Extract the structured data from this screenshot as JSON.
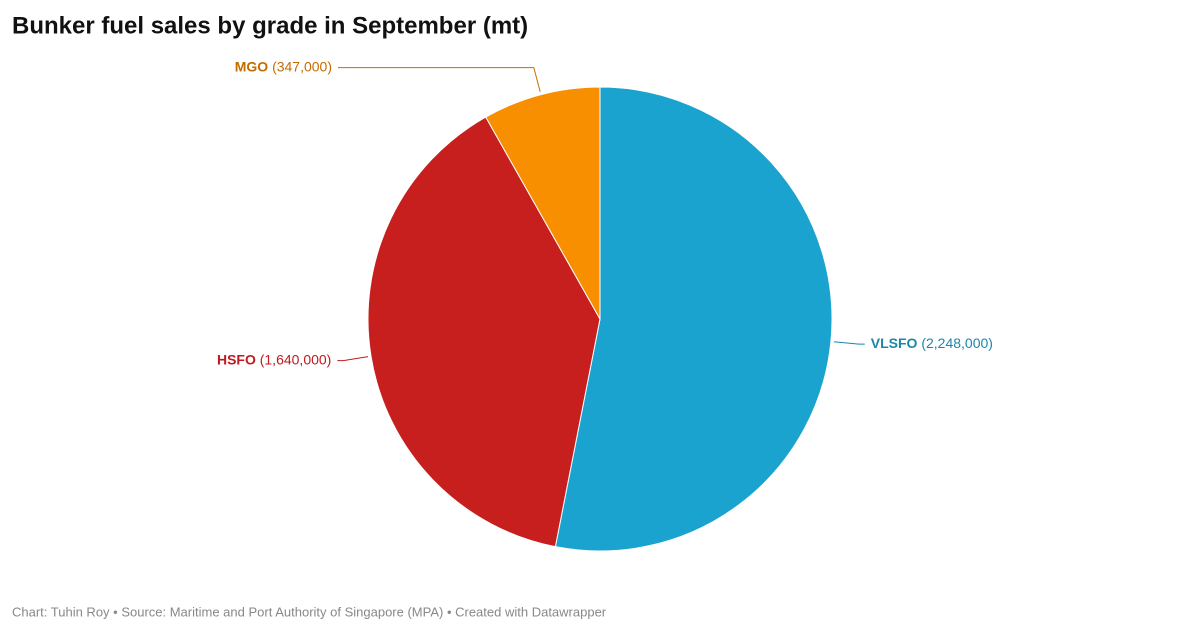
{
  "chart_data": {
    "type": "pie",
    "title": "Bunker fuel sales by grade in September (mt)",
    "categories": [
      "VLSFO",
      "HSFO",
      "MGO"
    ],
    "values": [
      2248000,
      1640000,
      347000
    ],
    "value_labels": [
      "(2,248,000)",
      "(1,640,000)",
      "(347,000)"
    ],
    "colors": [
      "#1aa3cf",
      "#c71e1e",
      "#f78f00"
    ],
    "label_colors": [
      "#1b87a8",
      "#c0191e",
      "#c36d00"
    ],
    "footer": "Chart: Tuhin Roy • Source: Maritime and Port Authority of Singapore (MPA) • Created with Datawrapper"
  }
}
